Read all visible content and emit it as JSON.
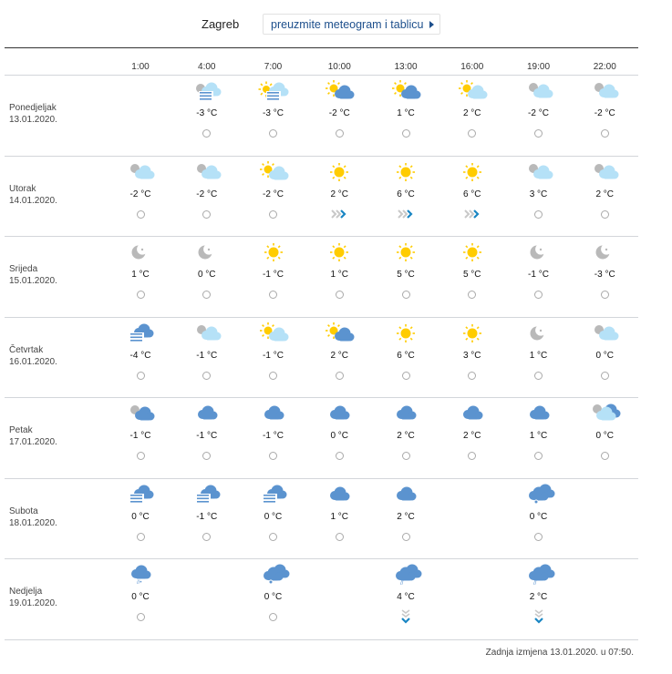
{
  "header": {
    "city": "Zagreb",
    "download_label": "preuzmite meteogram i tablicu"
  },
  "times": [
    "1:00",
    "4:00",
    "7:00",
    "10:00",
    "13:00",
    "16:00",
    "19:00",
    "22:00"
  ],
  "colors": {
    "sun": "#ffcc00",
    "cloud_dark": "#5b93cf",
    "cloud_light": "#b5e1f7",
    "moon": "#b9b9b9",
    "link": "#1d4f8c",
    "wind_arrow": "#1a86c3"
  },
  "days": [
    {
      "name": "Ponedjeljak",
      "date": "13.01.2020.",
      "slots": [
        null,
        {
          "icon": "fog-moon-icon",
          "temp": "-3 °C",
          "wind": "calm"
        },
        {
          "icon": "fog-sun-icon",
          "temp": "-3 °C",
          "wind": "calm"
        },
        {
          "icon": "sun-cloud-dark-icon",
          "temp": "-2 °C",
          "wind": "calm"
        },
        {
          "icon": "sun-cloud-dark-icon",
          "temp": "1 °C",
          "wind": "calm"
        },
        {
          "icon": "sun-cloud-light-icon",
          "temp": "2 °C",
          "wind": "calm"
        },
        {
          "icon": "moon-cloud-light-icon",
          "temp": "-2 °C",
          "wind": "calm"
        },
        {
          "icon": "moon-cloud-light-icon",
          "temp": "-2 °C",
          "wind": "calm"
        }
      ]
    },
    {
      "name": "Utorak",
      "date": "14.01.2020.",
      "slots": [
        {
          "icon": "moon-cloud-light-icon",
          "temp": "-2 °C",
          "wind": "calm"
        },
        {
          "icon": "moon-cloud-light-icon",
          "temp": "-2 °C",
          "wind": "calm"
        },
        {
          "icon": "sun-cloud-light-icon",
          "temp": "-2 °C",
          "wind": "calm"
        },
        {
          "icon": "sun-icon",
          "temp": "2 °C",
          "wind": "east"
        },
        {
          "icon": "sun-icon",
          "temp": "6 °C",
          "wind": "east"
        },
        {
          "icon": "sun-icon",
          "temp": "6 °C",
          "wind": "east"
        },
        {
          "icon": "moon-cloud-light-icon",
          "temp": "3 °C",
          "wind": "calm"
        },
        {
          "icon": "moon-cloud-light-icon",
          "temp": "2 °C",
          "wind": "calm"
        }
      ]
    },
    {
      "name": "Srijeda",
      "date": "15.01.2020.",
      "slots": [
        {
          "icon": "moon-icon",
          "temp": "1 °C",
          "wind": "calm"
        },
        {
          "icon": "moon-icon",
          "temp": "0 °C",
          "wind": "calm"
        },
        {
          "icon": "sun-icon",
          "temp": "-1 °C",
          "wind": "calm"
        },
        {
          "icon": "sun-icon",
          "temp": "1 °C",
          "wind": "calm"
        },
        {
          "icon": "sun-icon",
          "temp": "5 °C",
          "wind": "calm"
        },
        {
          "icon": "sun-icon",
          "temp": "5 °C",
          "wind": "calm"
        },
        {
          "icon": "moon-icon",
          "temp": "-1 °C",
          "wind": "calm"
        },
        {
          "icon": "moon-icon",
          "temp": "-3 °C",
          "wind": "calm"
        }
      ]
    },
    {
      "name": "Četvrtak",
      "date": "16.01.2020.",
      "slots": [
        {
          "icon": "fog-icon",
          "temp": "-4 °C",
          "wind": "calm"
        },
        {
          "icon": "moon-cloud-light-icon",
          "temp": "-1 °C",
          "wind": "calm"
        },
        {
          "icon": "sun-cloud-light-icon",
          "temp": "-1 °C",
          "wind": "calm"
        },
        {
          "icon": "sun-cloud-dark-icon",
          "temp": "2 °C",
          "wind": "calm"
        },
        {
          "icon": "sun-icon",
          "temp": "6 °C",
          "wind": "calm"
        },
        {
          "icon": "sun-icon",
          "temp": "3 °C",
          "wind": "calm"
        },
        {
          "icon": "moon-icon",
          "temp": "1 °C",
          "wind": "calm"
        },
        {
          "icon": "moon-cloud-light-icon",
          "temp": "0 °C",
          "wind": "calm"
        }
      ]
    },
    {
      "name": "Petak",
      "date": "17.01.2020.",
      "slots": [
        {
          "icon": "moon-cloud-dark-icon",
          "temp": "-1 °C",
          "wind": "calm"
        },
        {
          "icon": "cloud-icon",
          "temp": "-1 °C",
          "wind": "calm"
        },
        {
          "icon": "cloud-icon",
          "temp": "-1 °C",
          "wind": "calm"
        },
        {
          "icon": "cloud-icon",
          "temp": "0 °C",
          "wind": "calm"
        },
        {
          "icon": "cloud-icon",
          "temp": "2 °C",
          "wind": "calm"
        },
        {
          "icon": "cloud-icon",
          "temp": "2 °C",
          "wind": "calm"
        },
        {
          "icon": "cloud-icon",
          "temp": "1 °C",
          "wind": "calm"
        },
        {
          "icon": "moon-double-cloud-icon",
          "temp": "0 °C",
          "wind": "calm"
        }
      ]
    },
    {
      "name": "Subota",
      "date": "18.01.2020.",
      "slots": [
        {
          "icon": "fog-icon",
          "temp": "0 °C",
          "wind": "calm"
        },
        {
          "icon": "fog-icon",
          "temp": "-1 °C",
          "wind": "calm"
        },
        {
          "icon": "fog-icon",
          "temp": "0 °C",
          "wind": "calm"
        },
        {
          "icon": "cloud-icon",
          "temp": "1 °C",
          "wind": "calm"
        },
        {
          "icon": "cloud-icon",
          "temp": "2 °C",
          "wind": "calm"
        },
        null,
        {
          "icon": "double-cloud-snow-icon",
          "temp": "0 °C",
          "wind": "calm"
        },
        null
      ]
    },
    {
      "name": "Nedjelja",
      "date": "19.01.2020.",
      "slots": [
        {
          "icon": "cloud-sleet-icon",
          "temp": "0 °C",
          "wind": "calm"
        },
        null,
        {
          "icon": "double-cloud-snow-icon",
          "temp": "0 °C",
          "wind": "calm"
        },
        null,
        {
          "icon": "double-cloud-rain-icon",
          "temp": "4 °C",
          "wind": "south"
        },
        null,
        {
          "icon": "double-cloud-rain-icon",
          "temp": "2 °C",
          "wind": "south"
        },
        null
      ]
    }
  ],
  "footer": "Zadnja izmjena 13.01.2020. u 07:50."
}
